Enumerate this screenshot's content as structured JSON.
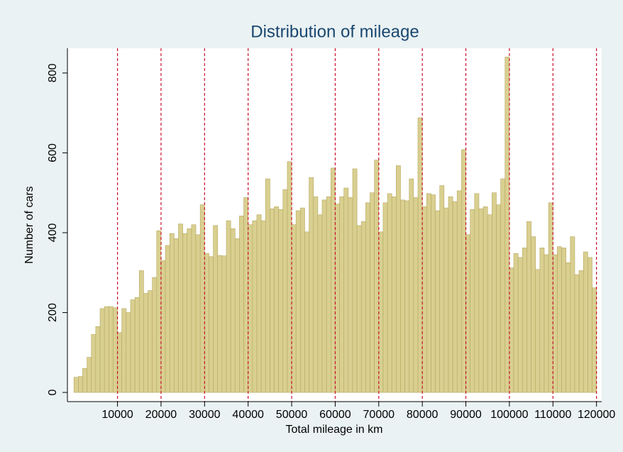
{
  "chart_data": {
    "type": "histogram",
    "title": "Distribution of mileage",
    "xlabel": "Total mileage in km",
    "ylabel": "Number of cars",
    "bins": [
      0,
      1000,
      2000,
      3000,
      4000,
      5000,
      6000,
      7000,
      8000,
      9000,
      10000,
      11000,
      12000,
      13000,
      14000,
      15000,
      16000,
      17000,
      18000,
      19000,
      20000,
      21000,
      22000,
      23000,
      24000,
      25000,
      26000,
      27000,
      28000,
      29000,
      30000,
      31000,
      32000,
      33000,
      34000,
      35000,
      36000,
      37000,
      38000,
      39000,
      40000,
      41000,
      42000,
      43000,
      44000,
      45000,
      46000,
      47000,
      48000,
      49000,
      50000,
      51000,
      52000,
      53000,
      54000,
      55000,
      56000,
      57000,
      58000,
      59000,
      60000,
      61000,
      62000,
      63000,
      64000,
      65000,
      66000,
      67000,
      68000,
      69000,
      70000,
      71000,
      72000,
      73000,
      74000,
      75000,
      76000,
      77000,
      78000,
      79000,
      80000,
      81000,
      82000,
      83000,
      84000,
      85000,
      86000,
      87000,
      88000,
      89000,
      90000,
      91000,
      92000,
      93000,
      94000,
      95000,
      96000,
      97000,
      98000,
      99000,
      100000,
      101000,
      102000,
      103000,
      104000,
      105000,
      106000,
      107000,
      108000,
      109000,
      110000,
      111000,
      112000,
      113000,
      114000,
      115000,
      116000,
      117000,
      118000,
      119000,
      120000
    ],
    "values": [
      38,
      40,
      60,
      88,
      145,
      165,
      210,
      215,
      215,
      212,
      150,
      210,
      200,
      232,
      238,
      305,
      248,
      255,
      288,
      405,
      330,
      368,
      398,
      385,
      422,
      398,
      410,
      420,
      395,
      470,
      348,
      340,
      418,
      343,
      342,
      430,
      410,
      385,
      442,
      488,
      420,
      430,
      445,
      430,
      535,
      460,
      465,
      458,
      508,
      578,
      420,
      455,
      462,
      402,
      538,
      490,
      445,
      482,
      490,
      562,
      472,
      490,
      512,
      488,
      560,
      418,
      428,
      475,
      500,
      582,
      402,
      475,
      498,
      490,
      568,
      482,
      480,
      535,
      488,
      688,
      465,
      498,
      495,
      455,
      518,
      462,
      490,
      478,
      505,
      608,
      395,
      458,
      498,
      460,
      465,
      445,
      500,
      470,
      535,
      840,
      312,
      348,
      338,
      362,
      428,
      390,
      308,
      362,
      345,
      475,
      345,
      365,
      362,
      325,
      390,
      295,
      305,
      352,
      338,
      262
    ],
    "color": "#d9cf90",
    "edgecolor": "#b5a85e",
    "xlim": [
      -1500,
      121200
    ],
    "ylim": [
      -23,
      862
    ],
    "xticks": [
      10000,
      20000,
      30000,
      40000,
      50000,
      60000,
      70000,
      80000,
      90000,
      100000,
      110000,
      120000
    ],
    "yticks": [
      0,
      200,
      400,
      600,
      800
    ],
    "grid": true,
    "grid_color": "#c8102e"
  }
}
